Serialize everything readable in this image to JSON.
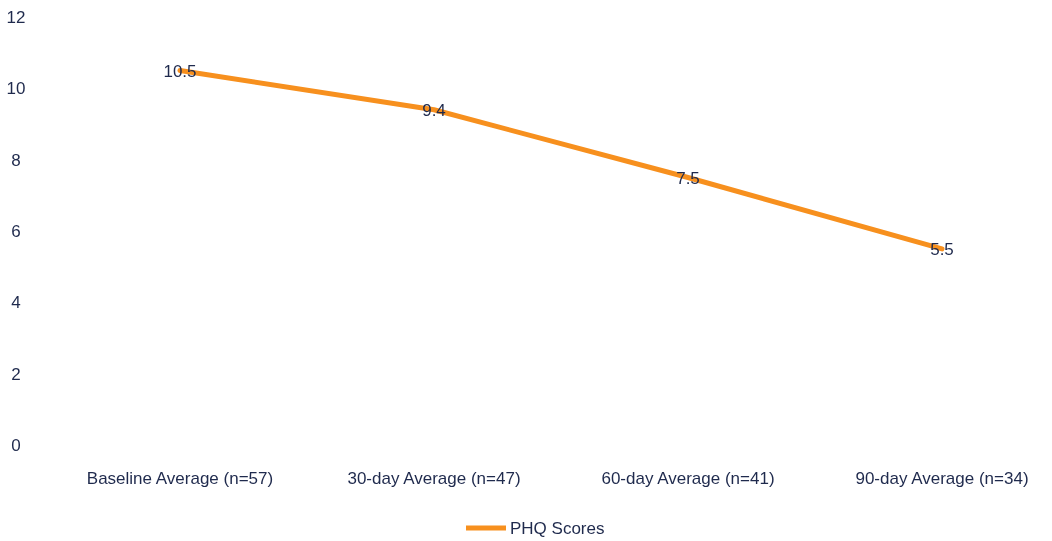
{
  "chart_data": {
    "type": "line",
    "categories": [
      "Baseline Average (n=57)",
      "30-day Average (n=47)",
      "60-day Average (n=41)",
      "90-day Average (n=34)"
    ],
    "series": [
      {
        "name": "PHQ Scores",
        "color": "#f7901e",
        "values": [
          10.5,
          9.4,
          7.5,
          5.5
        ]
      }
    ],
    "ylim": [
      0,
      12
    ],
    "yticks": [
      0,
      2,
      4,
      6,
      8,
      10,
      12
    ],
    "data_labels": true,
    "legend": "bottom",
    "marker": "none",
    "line_style": "solid",
    "grid": false
  }
}
